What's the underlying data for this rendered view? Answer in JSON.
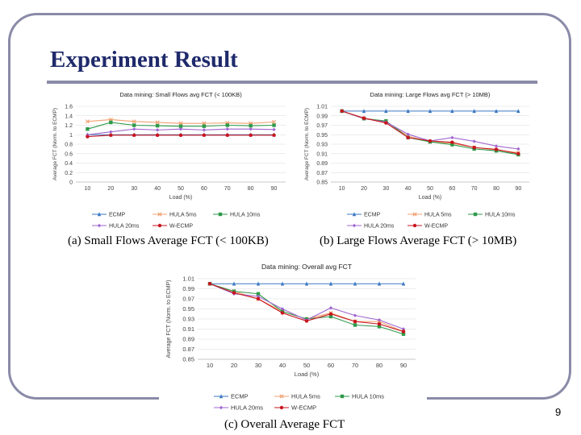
{
  "slide": {
    "title": "Experiment Result",
    "page_number": "9"
  },
  "colors": {
    "ECMP": "#3a78c3",
    "HULA 5ms": "#f0a070",
    "HULA 10ms": "#2e9a4a",
    "HULA 20ms": "#a066d0",
    "W-ECMP": "#c8141e"
  },
  "chart_data": [
    {
      "type": "line",
      "title": "Data mining:  Small Flows avg FCT (< 100KB)",
      "caption": "(a) Small Flows Average FCT (< 100KB)",
      "xlabel": "Load (%)",
      "ylabel": "Average  FCT (Norm. to ECMP)",
      "x": [
        10,
        20,
        30,
        40,
        50,
        60,
        70,
        80,
        90
      ],
      "ylim": [
        0,
        1.6
      ],
      "yticks": [
        0,
        0.2,
        0.4,
        0.6,
        0.8,
        1,
        1.2,
        1.4,
        1.6
      ],
      "grid": true,
      "legend": "bottom",
      "series": [
        {
          "name": "ECMP",
          "values": [
            1,
            1,
            1,
            1,
            1,
            1,
            1,
            1,
            1
          ]
        },
        {
          "name": "HULA 5ms",
          "values": [
            1.28,
            1.32,
            1.28,
            1.26,
            1.24,
            1.24,
            1.25,
            1.24,
            1.27
          ]
        },
        {
          "name": "HULA 10ms",
          "values": [
            1.12,
            1.26,
            1.2,
            1.19,
            1.18,
            1.18,
            1.2,
            1.19,
            1.2
          ]
        },
        {
          "name": "HULA 20ms",
          "values": [
            1.0,
            1.06,
            1.12,
            1.1,
            1.12,
            1.1,
            1.12,
            1.12,
            1.11
          ]
        },
        {
          "name": "W-ECMP",
          "values": [
            0.96,
            0.99,
            0.99,
            0.99,
            0.99,
            0.99,
            0.99,
            0.99,
            0.99
          ]
        }
      ]
    },
    {
      "type": "line",
      "title": "Data mining:  Large Flows avg FCT (> 10MB)",
      "caption": "(b) Large Flows Average FCT (> 10MB)",
      "xlabel": "Load (%)",
      "ylabel": "Average  FCT (Norm. to ECMP)",
      "x": [
        10,
        20,
        30,
        40,
        50,
        60,
        70,
        80,
        90
      ],
      "ylim": [
        0.85,
        1.01
      ],
      "yticks": [
        0.85,
        0.87,
        0.89,
        0.91,
        0.93,
        0.95,
        0.97,
        0.99,
        1.01
      ],
      "grid": true,
      "legend": "bottom",
      "series": [
        {
          "name": "ECMP",
          "values": [
            1,
            1,
            1,
            1,
            1,
            1,
            1,
            1,
            1
          ]
        },
        {
          "name": "HULA 5ms",
          "values": [
            1,
            0.985,
            0.978,
            0.947,
            0.935,
            0.932,
            0.923,
            0.918,
            0.912
          ]
        },
        {
          "name": "HULA 10ms",
          "values": [
            1,
            0.984,
            0.979,
            0.944,
            0.935,
            0.929,
            0.92,
            0.916,
            0.908
          ]
        },
        {
          "name": "HULA 20ms",
          "values": [
            1,
            0.984,
            0.977,
            0.951,
            0.937,
            0.944,
            0.936,
            0.926,
            0.92
          ]
        },
        {
          "name": "W-ECMP",
          "values": [
            1,
            0.985,
            0.975,
            0.944,
            0.937,
            0.934,
            0.923,
            0.919,
            0.91
          ]
        }
      ]
    },
    {
      "type": "line",
      "title": "Data mining:  Overall avg FCT",
      "caption": "(c) Overall Average FCT",
      "xlabel": "Load (%)",
      "ylabel": "Average FCT (Norm. to ECMP)",
      "x": [
        10,
        20,
        30,
        40,
        50,
        60,
        70,
        80,
        90
      ],
      "ylim": [
        0.85,
        1.01
      ],
      "yticks": [
        0.85,
        0.87,
        0.89,
        0.91,
        0.93,
        0.95,
        0.97,
        0.99,
        1.01
      ],
      "grid": true,
      "legend": "bottom",
      "series": [
        {
          "name": "ECMP",
          "values": [
            1,
            1,
            1,
            1,
            1,
            1,
            1,
            1,
            1
          ]
        },
        {
          "name": "HULA 5ms",
          "values": [
            1,
            0.985,
            0.97,
            0.945,
            0.93,
            0.942,
            0.925,
            0.925,
            0.905
          ]
        },
        {
          "name": "HULA 10ms",
          "values": [
            1,
            0.985,
            0.98,
            0.945,
            0.93,
            0.935,
            0.918,
            0.915,
            0.9
          ]
        },
        {
          "name": "HULA 20ms",
          "values": [
            1,
            0.98,
            0.975,
            0.95,
            0.928,
            0.952,
            0.937,
            0.928,
            0.91
          ]
        },
        {
          "name": "W-ECMP",
          "values": [
            1,
            0.982,
            0.97,
            0.942,
            0.926,
            0.94,
            0.925,
            0.92,
            0.905
          ]
        }
      ]
    }
  ]
}
